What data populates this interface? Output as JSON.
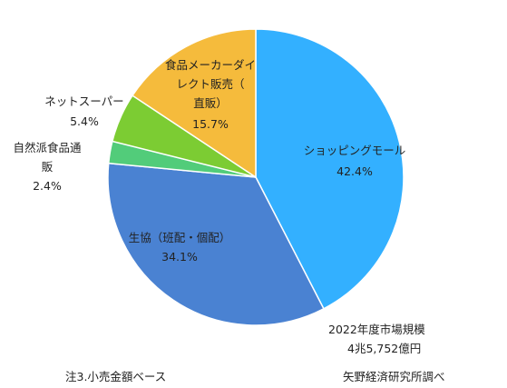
{
  "chart_data": {
    "type": "pie",
    "slices": [
      {
        "label": "ショッピングモール",
        "value": 42.4,
        "value_label": "42.4%",
        "color": "#33b0ff"
      },
      {
        "label": "生協（班配・個配）",
        "value": 34.1,
        "value_label": "34.1%",
        "color": "#4a82d2"
      },
      {
        "label": "自然派食品通販",
        "value": 2.4,
        "value_label": "2.4%",
        "color": "#52cc7a"
      },
      {
        "label": "ネットスーパー",
        "value": 5.4,
        "value_label": "5.4%",
        "color": "#7ccc33"
      },
      {
        "label": "食品メーカーダイレクト販売（直販）",
        "value": 15.7,
        "value_label": "15.7%",
        "color": "#f5bb3c"
      }
    ],
    "market_size": [
      "2022年度市場規模",
      "4兆5,752億円"
    ],
    "footnote": "注3.小売金額ベース",
    "source": "矢野経済研究所調べ"
  }
}
